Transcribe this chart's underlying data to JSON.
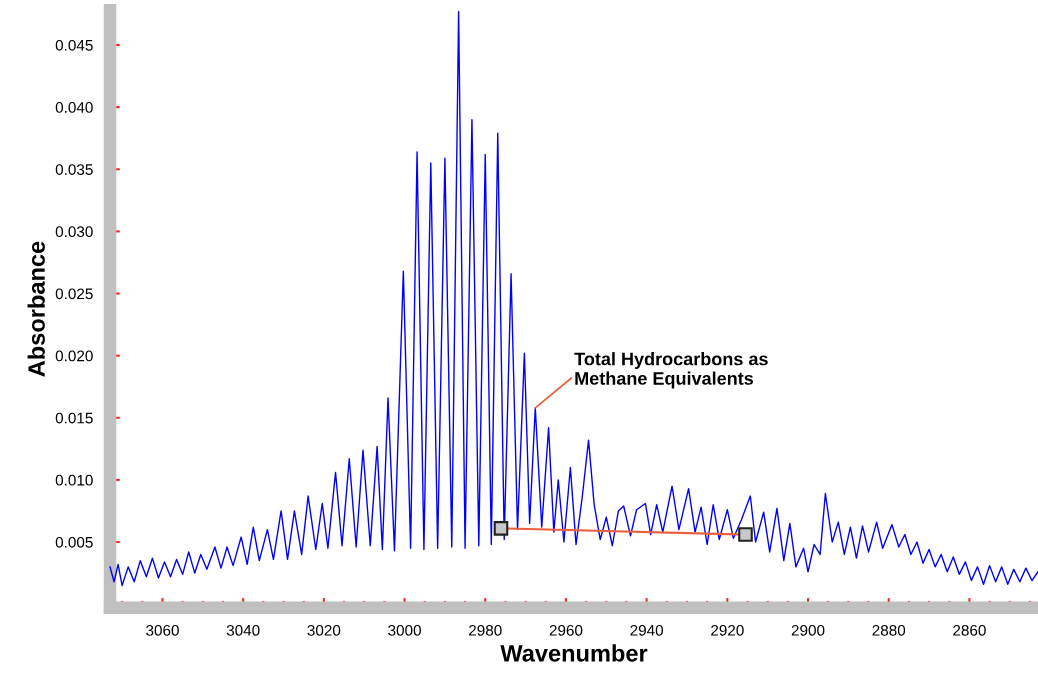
{
  "chart_data": {
    "type": "line",
    "xlabel": "Wavenumber",
    "ylabel": "Absorbance",
    "xlim": [
      3073,
      2843
    ],
    "ylim": [
      -0.0003,
      0.0478
    ],
    "xticks": [
      {
        "value": 3070,
        "label": null
      },
      {
        "value": 3065,
        "label": null
      },
      {
        "value": 3060,
        "label": "3060"
      },
      {
        "value": 3055,
        "label": null
      },
      {
        "value": 3050,
        "label": null
      },
      {
        "value": 3045,
        "label": null
      },
      {
        "value": 3040,
        "label": "3040"
      },
      {
        "value": 3035,
        "label": null
      },
      {
        "value": 3030,
        "label": null
      },
      {
        "value": 3025,
        "label": null
      },
      {
        "value": 3020,
        "label": "3020"
      },
      {
        "value": 3015,
        "label": null
      },
      {
        "value": 3010,
        "label": null
      },
      {
        "value": 3005,
        "label": null
      },
      {
        "value": 3000,
        "label": "3000"
      },
      {
        "value": 2995,
        "label": null
      },
      {
        "value": 2990,
        "label": null
      },
      {
        "value": 2985,
        "label": null
      },
      {
        "value": 2980,
        "label": "2980"
      },
      {
        "value": 2975,
        "label": null
      },
      {
        "value": 2970,
        "label": null
      },
      {
        "value": 2965,
        "label": null
      },
      {
        "value": 2960,
        "label": "2960"
      },
      {
        "value": 2955,
        "label": null
      },
      {
        "value": 2950,
        "label": null
      },
      {
        "value": 2945,
        "label": null
      },
      {
        "value": 2940,
        "label": "2940"
      },
      {
        "value": 2935,
        "label": null
      },
      {
        "value": 2930,
        "label": null
      },
      {
        "value": 2925,
        "label": null
      },
      {
        "value": 2920,
        "label": "2920"
      },
      {
        "value": 2915,
        "label": null
      },
      {
        "value": 2910,
        "label": null
      },
      {
        "value": 2905,
        "label": null
      },
      {
        "value": 2900,
        "label": "2900"
      },
      {
        "value": 2895,
        "label": null
      },
      {
        "value": 2890,
        "label": null
      },
      {
        "value": 2885,
        "label": null
      },
      {
        "value": 2880,
        "label": "2880"
      },
      {
        "value": 2875,
        "label": null
      },
      {
        "value": 2870,
        "label": null
      },
      {
        "value": 2865,
        "label": null
      },
      {
        "value": 2860,
        "label": "2860"
      },
      {
        "value": 2855,
        "label": null
      },
      {
        "value": 2850,
        "label": null
      },
      {
        "value": 2845,
        "label": null
      }
    ],
    "yticks": [
      {
        "value": 0,
        "label": null
      },
      {
        "value": 0.005,
        "label": "0.005"
      },
      {
        "value": 0.01,
        "label": "0.010"
      },
      {
        "value": 0.015,
        "label": "0.015"
      },
      {
        "value": 0.02,
        "label": "0.020"
      },
      {
        "value": 0.025,
        "label": "0.025"
      },
      {
        "value": 0.03,
        "label": "0.030"
      },
      {
        "value": 0.035,
        "label": "0.035"
      },
      {
        "value": 0.04,
        "label": "0.040"
      },
      {
        "value": 0.045,
        "label": "0.045"
      }
    ],
    "grid": false,
    "legend": false,
    "annotations": [
      {
        "text": "Total Hydrocarbons as\nMethane Equivalents",
        "x": 2967.6,
        "y": 0.0158
      }
    ],
    "series": [
      {
        "color": "#0000ff",
        "marker": "none",
        "line_style": "solid",
        "x": [
          3073,
          3072,
          3071,
          3070,
          3068.5,
          3067,
          3065.5,
          3064,
          3062.5,
          3061,
          3059.5,
          3058,
          3056.5,
          3055,
          3053.5,
          3052,
          3050.5,
          3049,
          3047,
          3045.5,
          3044,
          3042.5,
          3040.5,
          3039,
          3037.5,
          3036,
          3034,
          3032.5,
          3030.6,
          3029,
          3027.3,
          3025.5,
          3023.9,
          3022,
          3020.4,
          3019,
          3017.1,
          3015.5,
          3013.7,
          3012,
          3010.3,
          3008.5,
          3006.8,
          3005.5,
          3004.1,
          3002.5,
          3000.3,
          2998.5,
          2996.9,
          2995.2,
          2993.5,
          2991.8,
          2990.0,
          2988.3,
          2986.6,
          2985,
          2983.3,
          2981.6,
          2980.0,
          2978.5,
          2976.9,
          2975.3,
          2973.6,
          2972,
          2970.3,
          2969,
          2967.6,
          2966,
          2964.3,
          2963,
          2961.9,
          2960.5,
          2958.9,
          2957.5,
          2956,
          2954.4,
          2953,
          2951.5,
          2950,
          2948.5,
          2947,
          2945.7,
          2944,
          2942.5,
          2940.3,
          2939,
          2937.5,
          2936,
          2933.7,
          2932,
          2929.6,
          2928,
          2926.5,
          2925,
          2923.5,
          2922,
          2920,
          2918.5,
          2916.5,
          2914.3,
          2913,
          2911,
          2909.5,
          2907.7,
          2906,
          2904.5,
          2903,
          2901.1,
          2900,
          2898.5,
          2897,
          2895.7,
          2894,
          2892.5,
          2891,
          2889.5,
          2888,
          2886.5,
          2885,
          2883,
          2881.5,
          2879.2,
          2877.5,
          2876,
          2874.5,
          2873,
          2871.5,
          2870,
          2868.5,
          2867,
          2865.5,
          2864,
          2862.5,
          2861,
          2859.5,
          2858,
          2856.5,
          2855,
          2853.5,
          2852,
          2850.5,
          2849,
          2847.5,
          2846,
          2844.5,
          2843
        ],
        "values": [
          0.003,
          0.0018,
          0.0032,
          0.0015,
          0.003,
          0.0018,
          0.0035,
          0.0022,
          0.0037,
          0.0021,
          0.0034,
          0.0022,
          0.0036,
          0.0024,
          0.0042,
          0.0025,
          0.004,
          0.0028,
          0.0046,
          0.0029,
          0.0046,
          0.0031,
          0.0054,
          0.0032,
          0.0062,
          0.0035,
          0.006,
          0.0036,
          0.0075,
          0.0036,
          0.0075,
          0.004,
          0.0087,
          0.0044,
          0.0081,
          0.0045,
          0.0106,
          0.0047,
          0.0117,
          0.0046,
          0.0124,
          0.0047,
          0.0127,
          0.0044,
          0.0166,
          0.0043,
          0.0268,
          0.0045,
          0.0364,
          0.0044,
          0.0355,
          0.0045,
          0.0359,
          0.0046,
          0.0477,
          0.0045,
          0.039,
          0.0047,
          0.0362,
          0.0048,
          0.0379,
          0.0052,
          0.0266,
          0.006,
          0.0202,
          0.0065,
          0.0158,
          0.0062,
          0.0142,
          0.0058,
          0.01,
          0.005,
          0.011,
          0.0048,
          0.0085,
          0.0132,
          0.008,
          0.0052,
          0.007,
          0.0047,
          0.0075,
          0.0079,
          0.0055,
          0.0076,
          0.0081,
          0.0056,
          0.008,
          0.0058,
          0.0095,
          0.006,
          0.0093,
          0.0058,
          0.0078,
          0.0048,
          0.008,
          0.0052,
          0.0076,
          0.0053,
          0.0068,
          0.0087,
          0.005,
          0.0074,
          0.0042,
          0.0077,
          0.0035,
          0.0065,
          0.003,
          0.0045,
          0.0026,
          0.0048,
          0.004,
          0.0089,
          0.005,
          0.0066,
          0.004,
          0.0062,
          0.0037,
          0.0063,
          0.0042,
          0.0066,
          0.0045,
          0.0064,
          0.0046,
          0.0056,
          0.004,
          0.005,
          0.0033,
          0.0044,
          0.003,
          0.004,
          0.0026,
          0.0038,
          0.0024,
          0.0034,
          0.0019,
          0.003,
          0.0016,
          0.0031,
          0.0018,
          0.003,
          0.0016,
          0.0028,
          0.0018,
          0.0029,
          0.0019,
          0.0026
        ]
      },
      {
        "color": "#e8603c",
        "marker": "square",
        "line_style": "solid",
        "x": [
          2976.1,
          2915.5
        ],
        "values": [
          0.0061,
          0.0056
        ]
      }
    ]
  }
}
